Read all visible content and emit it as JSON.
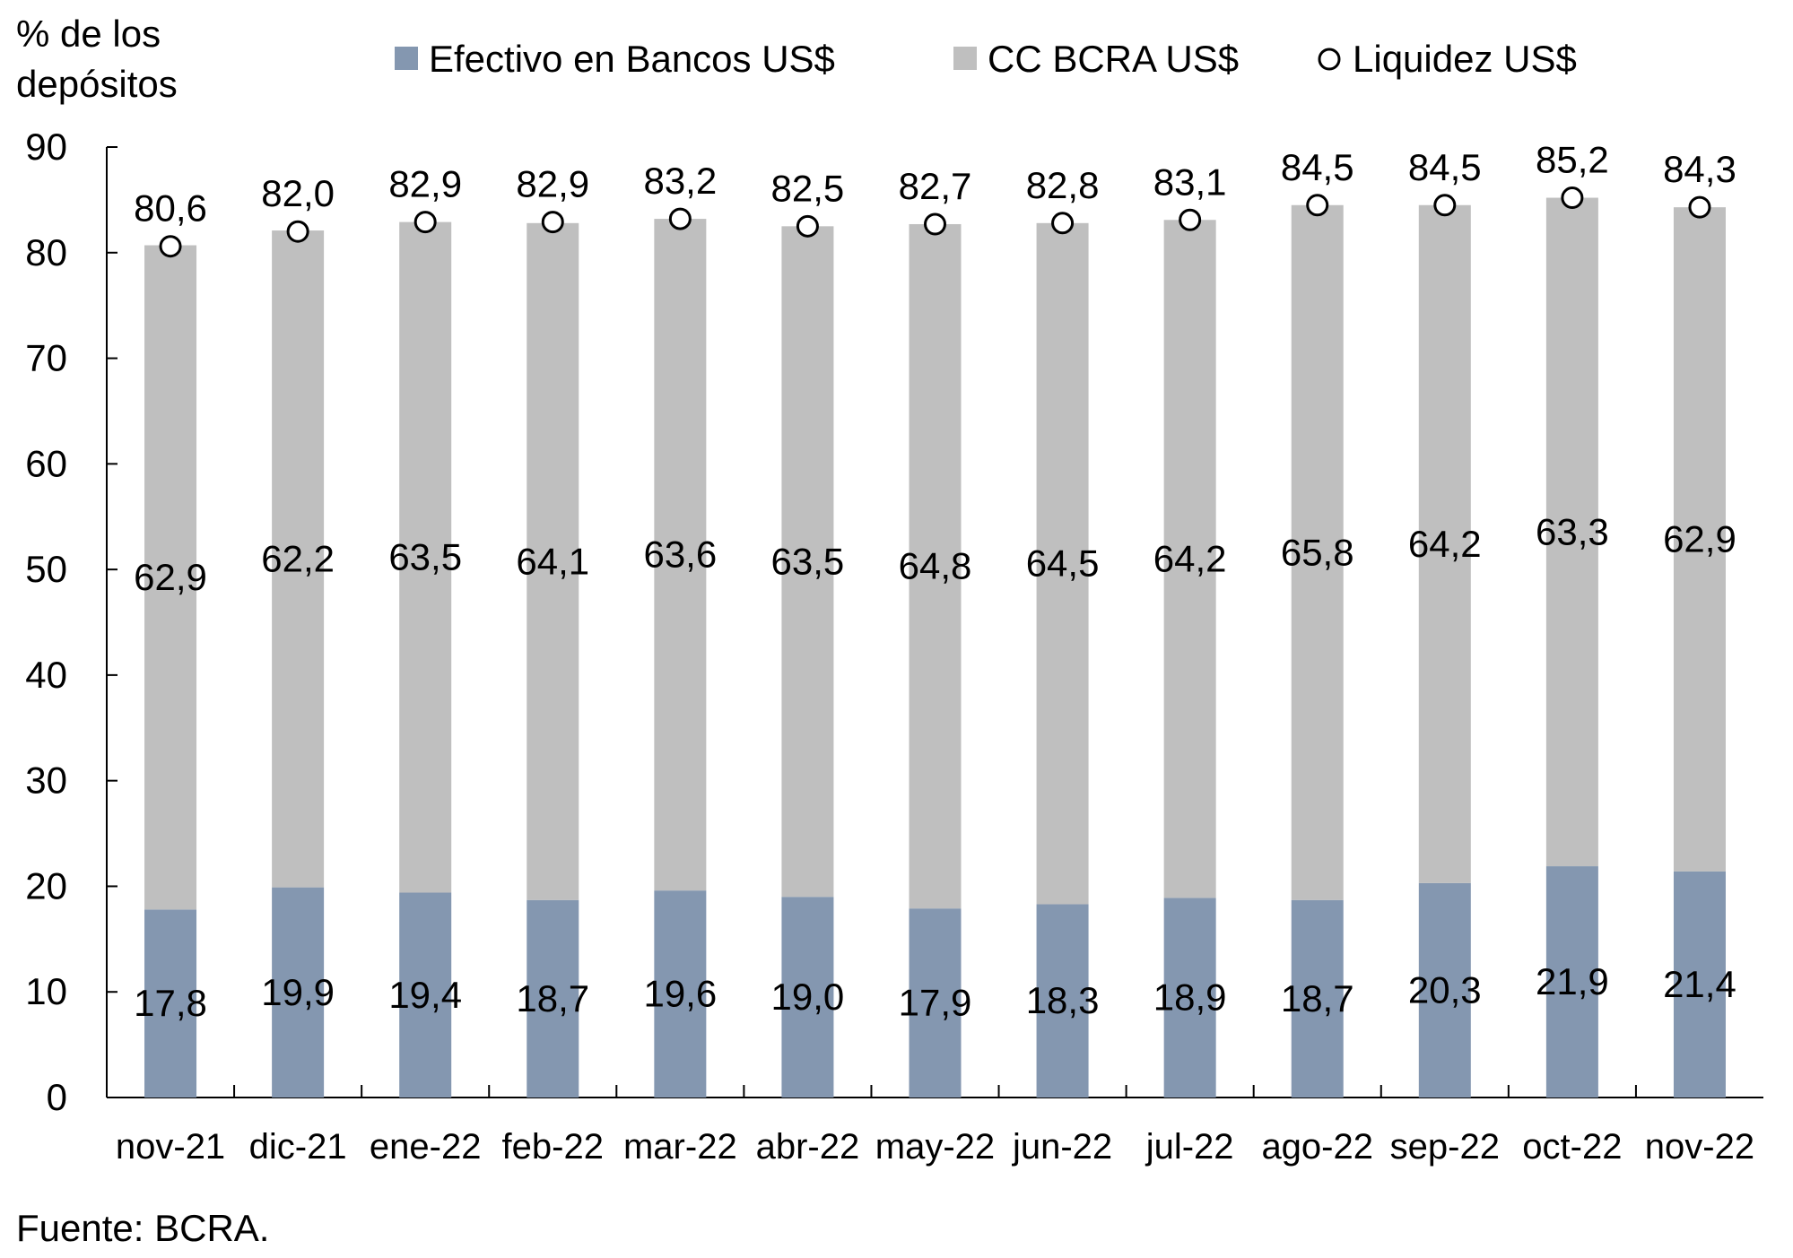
{
  "chart_data": {
    "type": "bar",
    "stacked": true,
    "ylabel": "% de los depósitos",
    "ylabel_lines": [
      "% de los",
      "depósitos"
    ],
    "ylim": [
      0,
      90
    ],
    "yticks": [
      0,
      10,
      20,
      30,
      40,
      50,
      60,
      70,
      80,
      90
    ],
    "grid": false,
    "legend_position": "top",
    "categories": [
      "nov-21",
      "dic-21",
      "ene-22",
      "feb-22",
      "mar-22",
      "abr-22",
      "may-22",
      "jun-22",
      "jul-22",
      "ago-22",
      "sep-22",
      "oct-22",
      "nov-22"
    ],
    "series": [
      {
        "name": "Efectivo en Bancos US$",
        "kind": "bar",
        "color": "#8497b0",
        "values": [
          17.8,
          19.9,
          19.4,
          18.7,
          19.6,
          19.0,
          17.9,
          18.3,
          18.9,
          18.7,
          20.3,
          21.9,
          21.4
        ],
        "labels": [
          "17,8",
          "19,9",
          "19,4",
          "18,7",
          "19,6",
          "19,0",
          "17,9",
          "18,3",
          "18,9",
          "18,7",
          "20,3",
          "21,9",
          "21,4"
        ]
      },
      {
        "name": "CC BCRA US$",
        "kind": "bar",
        "color": "#bfbfbf",
        "values": [
          62.9,
          62.2,
          63.5,
          64.1,
          63.6,
          63.5,
          64.8,
          64.5,
          64.2,
          65.8,
          64.2,
          63.3,
          62.9
        ],
        "labels": [
          "62,9",
          "62,2",
          "63,5",
          "64,1",
          "63,6",
          "63,5",
          "64,8",
          "64,5",
          "64,2",
          "65,8",
          "64,2",
          "63,3",
          "62,9"
        ]
      },
      {
        "name": "Liquidez US$",
        "kind": "marker",
        "color": "#ffffff",
        "values": [
          80.6,
          82.0,
          82.9,
          82.9,
          83.2,
          82.5,
          82.7,
          82.8,
          83.1,
          84.5,
          84.5,
          85.2,
          84.3
        ],
        "labels": [
          "80,6",
          "82,0",
          "82,9",
          "82,9",
          "83,2",
          "82,5",
          "82,7",
          "82,8",
          "83,1",
          "84,5",
          "84,5",
          "85,2",
          "84,3"
        ]
      }
    ],
    "source": "Fuente: BCRA."
  }
}
